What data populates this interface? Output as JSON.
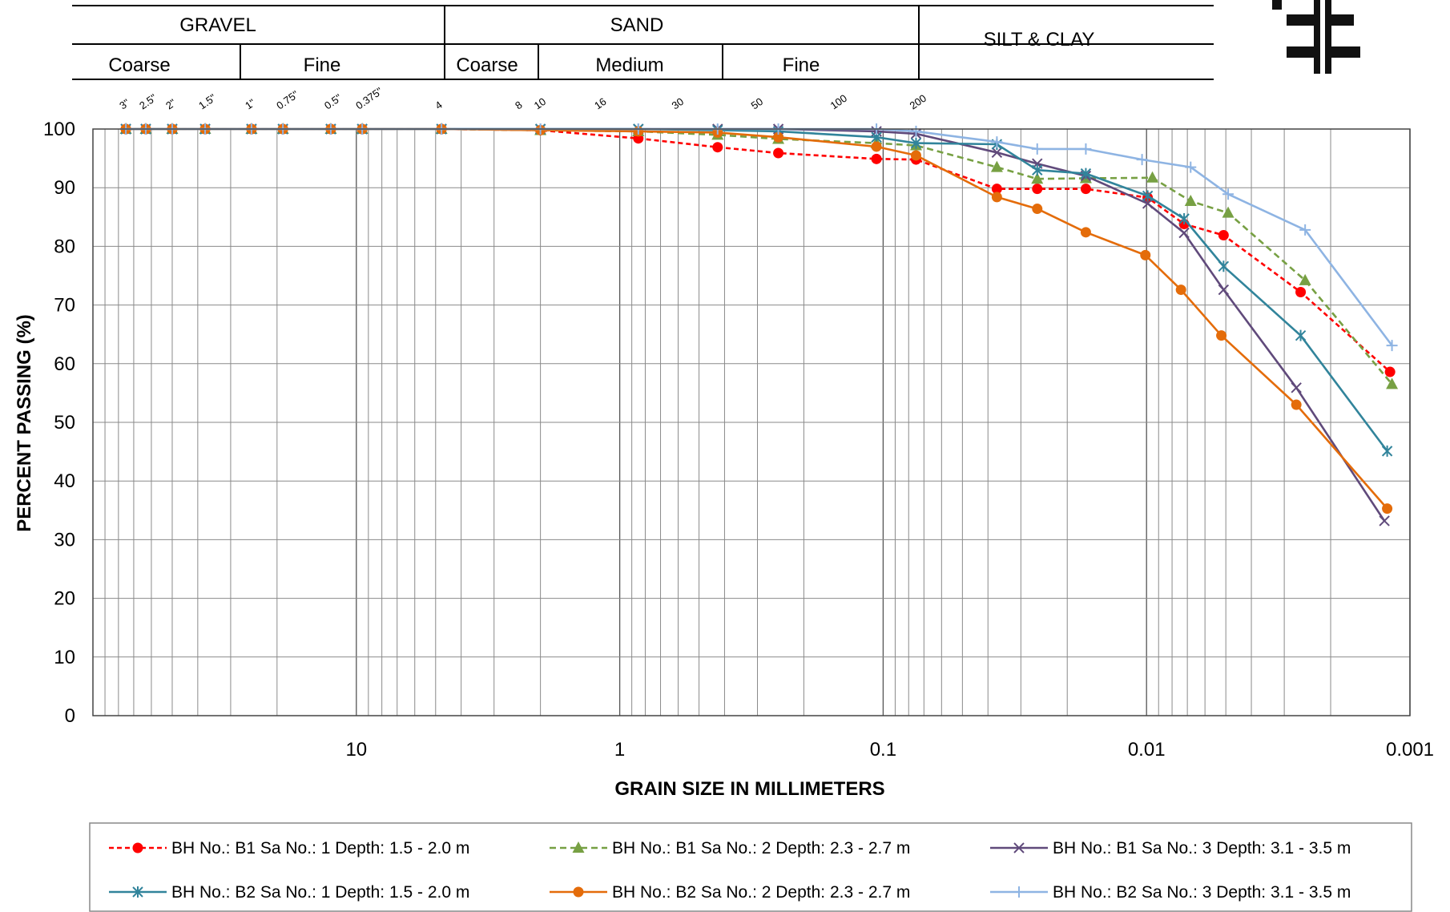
{
  "header": {
    "gravel": "GRAVEL",
    "sand": "SAND",
    "silt_clay": "SILT & CLAY",
    "coarse_gravel": "Coarse",
    "fine_gravel": "Fine",
    "coarse_sand": "Coarse",
    "medium_sand": "Medium",
    "fine_sand": "Fine"
  },
  "sieves": [
    {
      "label": "3\"",
      "d": 75
    },
    {
      "label": "2.5\"",
      "d": 63
    },
    {
      "label": "2\"",
      "d": 50
    },
    {
      "label": "1.5\"",
      "d": 37.5
    },
    {
      "label": "1\"",
      "d": 25
    },
    {
      "label": "0.75\"",
      "d": 19
    },
    {
      "label": "0.5\"",
      "d": 12.5
    },
    {
      "label": "0.375\"",
      "d": 9.5
    },
    {
      "label": "4",
      "d": 4.75
    },
    {
      "label": "8",
      "d": 2.36
    },
    {
      "label": "10",
      "d": 2.0
    },
    {
      "label": "16",
      "d": 1.18
    },
    {
      "label": "30",
      "d": 0.6
    },
    {
      "label": "50",
      "d": 0.3
    },
    {
      "label": "100",
      "d": 0.15
    },
    {
      "label": "200",
      "d": 0.075
    }
  ],
  "chart_data": {
    "type": "line",
    "xlabel": "GRAIN SIZE IN MILLIMETERS",
    "ylabel": "PERCENT PASSING (%)",
    "x_scale": "log",
    "x_reversed": true,
    "xlim": [
      100,
      0.001
    ],
    "ylim": [
      0,
      100
    ],
    "x_tick_labels": [
      "10",
      "1",
      "0.1",
      "0.01",
      "0.001"
    ],
    "y_tick_labels": [
      "0",
      "10",
      "20",
      "30",
      "40",
      "50",
      "60",
      "70",
      "80",
      "90",
      "100"
    ],
    "grid": true,
    "legend_position": "bottom",
    "series": [
      {
        "name": "BH No.: B1 Sa No.: 1 Depth: 1.5 - 2.0 m",
        "color": "#ff0000",
        "dash": "6,4",
        "marker": "circle",
        "x": [
          75,
          63,
          50,
          37.5,
          25,
          19,
          12.5,
          9.5,
          4.75,
          2.0,
          0.85,
          0.425,
          0.25,
          0.106,
          0.075,
          0.037,
          0.026,
          0.017,
          0.0099,
          0.0072,
          0.0051,
          0.0026,
          0.00119
        ],
        "y": [
          100,
          100,
          100,
          100,
          100,
          100,
          100,
          100,
          100,
          99.8,
          98.4,
          96.9,
          95.9,
          94.9,
          94.8,
          89.8,
          89.8,
          89.8,
          88.3,
          83.8,
          81.9,
          72.2,
          58.6
        ]
      },
      {
        "name": "BH No.: B1 Sa No.: 2 Depth: 2.3 - 2.7 m",
        "color": "#77a043",
        "dash": "8,5",
        "marker": "triangle",
        "x": [
          75,
          63,
          50,
          37.5,
          25,
          19,
          12.5,
          9.5,
          4.75,
          2.0,
          0.85,
          0.425,
          0.25,
          0.106,
          0.075,
          0.037,
          0.026,
          0.017,
          0.0095,
          0.0068,
          0.0049,
          0.0025,
          0.00117
        ],
        "y": [
          100,
          100,
          100,
          100,
          100,
          100,
          100,
          100,
          100,
          99.8,
          99.6,
          99.0,
          98.3,
          97.6,
          97.2,
          93.5,
          91.5,
          91.6,
          91.7,
          87.7,
          85.7,
          74.2,
          56.5
        ]
      },
      {
        "name": "BH No.: B1 Sa No.: 3 Depth: 3.1 - 3.5 m",
        "color": "#604a7b",
        "dash": "",
        "marker": "x",
        "x": [
          75,
          63,
          50,
          37.5,
          25,
          19,
          12.5,
          9.5,
          4.75,
          2.0,
          0.85,
          0.425,
          0.25,
          0.106,
          0.075,
          0.037,
          0.026,
          0.017,
          0.0099,
          0.0072,
          0.0051,
          0.0027,
          0.00125
        ],
        "y": [
          100,
          100,
          100,
          100,
          100,
          100,
          100,
          100,
          100,
          100,
          100,
          100,
          100,
          99.6,
          99.2,
          96.0,
          94.1,
          92.0,
          87.3,
          82.3,
          72.6,
          55.9,
          33.2
        ]
      },
      {
        "name": "BH No.: B2 Sa No.: 1 Depth: 1.5 - 2.0 m",
        "color": "#31849b",
        "dash": "",
        "marker": "star",
        "x": [
          75,
          63,
          50,
          37.5,
          25,
          19,
          12.5,
          9.5,
          4.75,
          2.0,
          0.85,
          0.425,
          0.25,
          0.106,
          0.075,
          0.037,
          0.026,
          0.017,
          0.0099,
          0.0072,
          0.0051,
          0.0026,
          0.00122
        ],
        "y": [
          100,
          100,
          100,
          100,
          100,
          100,
          100,
          100,
          100,
          100,
          100,
          99.8,
          99.6,
          98.6,
          97.6,
          97.4,
          93.0,
          92.4,
          88.6,
          84.7,
          76.6,
          64.8,
          45.1
        ]
      },
      {
        "name": "BH No.: B2 Sa No.: 2 Depth: 2.3 - 2.7 m",
        "color": "#e46c0a",
        "dash": "",
        "marker": "circle",
        "x": [
          75,
          63,
          50,
          37.5,
          25,
          19,
          12.5,
          9.5,
          4.75,
          2.0,
          0.85,
          0.425,
          0.25,
          0.106,
          0.075,
          0.037,
          0.026,
          0.017,
          0.0101,
          0.0074,
          0.0052,
          0.0027,
          0.00122
        ],
        "y": [
          100,
          100,
          100,
          100,
          100,
          100,
          100,
          100,
          100,
          99.8,
          99.6,
          99.4,
          98.6,
          97.0,
          95.5,
          88.4,
          86.4,
          82.4,
          78.5,
          72.6,
          64.8,
          53.0,
          35.3
        ]
      },
      {
        "name": "BH No.: B2 Sa No.: 3 Depth: 3.1 - 3.5 m",
        "color": "#8eb4e3",
        "dash": "",
        "marker": "plus",
        "x": [
          75,
          63,
          50,
          37.5,
          25,
          19,
          12.5,
          9.5,
          4.75,
          2.0,
          0.85,
          0.425,
          0.25,
          0.106,
          0.075,
          0.037,
          0.026,
          0.017,
          0.0104,
          0.0068,
          0.0049,
          0.0025,
          0.00117
        ],
        "y": [
          100,
          100,
          100,
          100,
          100,
          100,
          100,
          100,
          100,
          100,
          100,
          100,
          100,
          100,
          99.6,
          97.8,
          96.6,
          96.6,
          94.8,
          93.5,
          88.9,
          82.8,
          63.1
        ]
      }
    ]
  }
}
